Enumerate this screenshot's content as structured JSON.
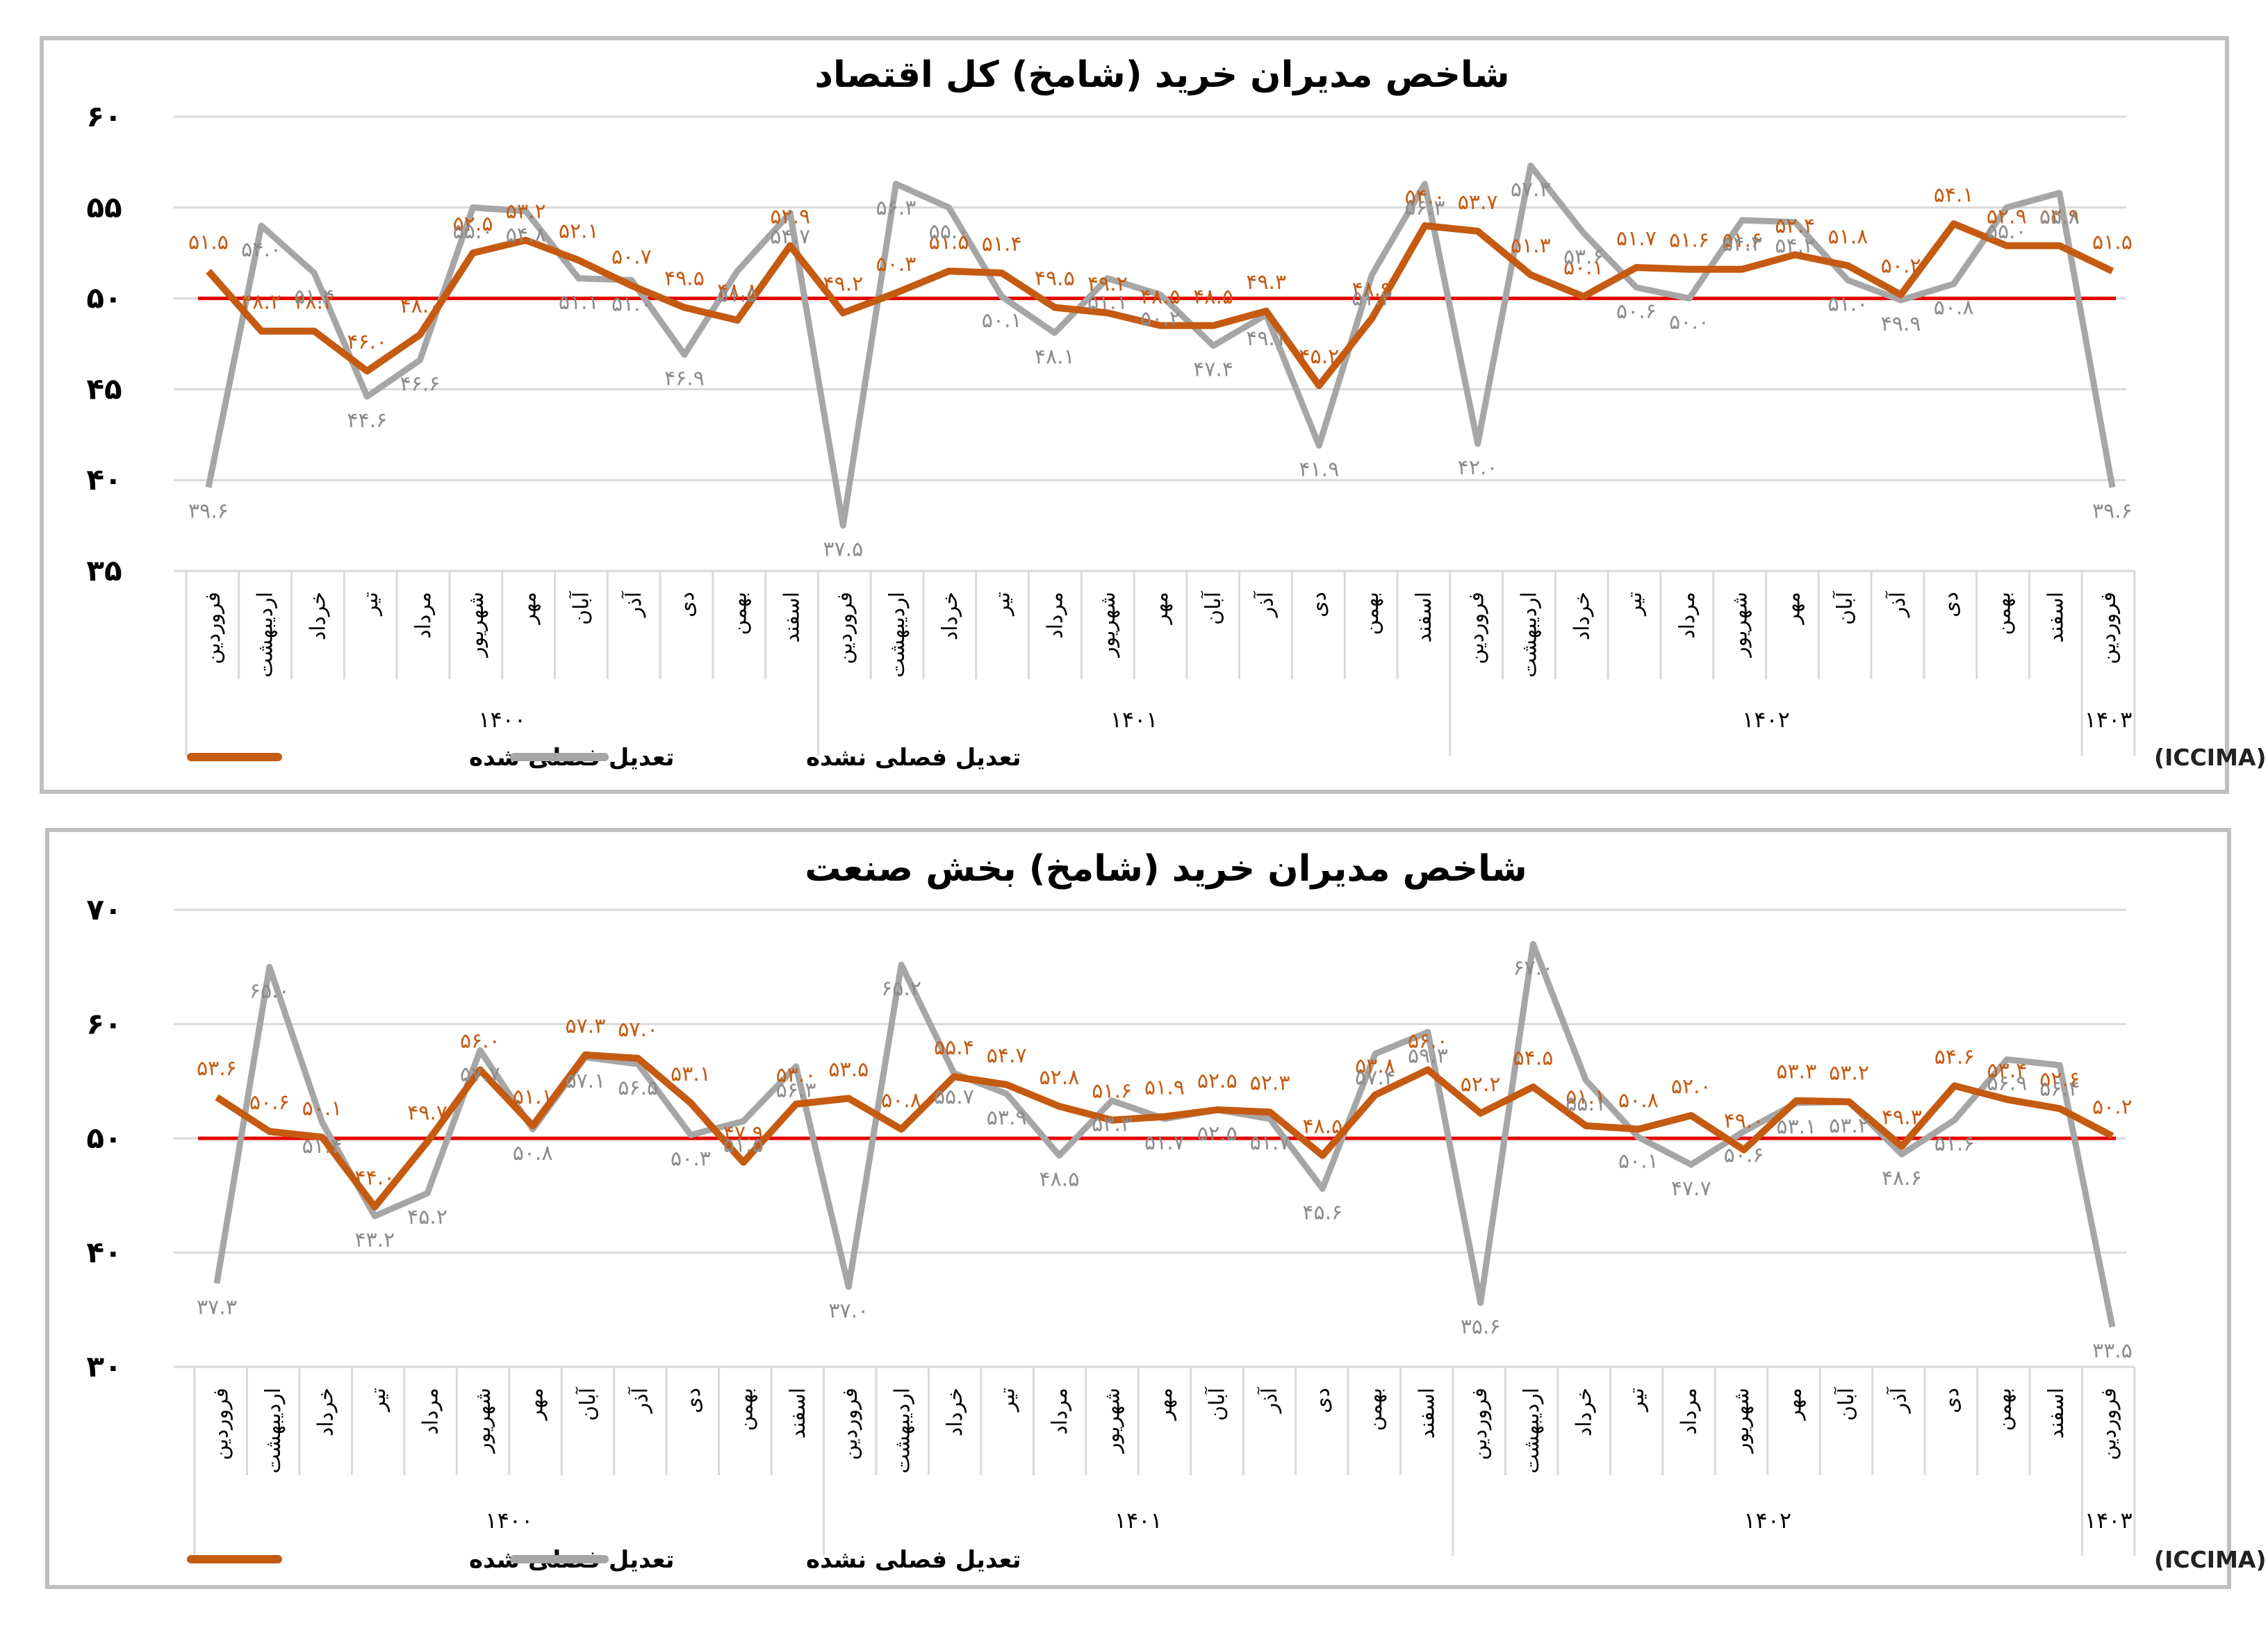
{
  "months": [
    "فروردین",
    "اردیبهشت",
    "خرداد",
    "تیر",
    "مرداد",
    "شهریور",
    "مهر",
    "آبان",
    "آذر",
    "دی",
    "بهمن",
    "اسفند",
    "فروردین",
    "اردیبهشت",
    "خرداد",
    "تیر",
    "مرداد",
    "شهریور",
    "مهر",
    "آبان",
    "آذر",
    "دی",
    "بهمن",
    "اسفند",
    "فروردین",
    "اردیبهشت",
    "خرداد",
    "تیر",
    "مرداد",
    "شهریور",
    "مهر",
    "آبان",
    "آذر",
    "دی",
    "بهمن",
    "اسفند",
    "فروردین"
  ],
  "years": [
    "۱۴۰۰",
    "۱۴۰۱",
    "۱۴۰۲",
    "۱۴۰۳"
  ],
  "legend": {
    "seasonal": "تعدیل فصلی شده",
    "unadjusted": "تعدیل فصلی نشده"
  },
  "source": "منبع: اتاق بازرگانی، صنایع، معادن و کشاورزی ایران (ICCIMA)",
  "colors": {
    "seasonal": "#c55a11",
    "unadjusted": "#a6a6a6",
    "threshold": "#e60000",
    "frame": "#bfbfbf",
    "grid": "#d9d9d9"
  },
  "chart_data": [
    {
      "type": "line",
      "title": "شاخص مدیران خرید (شامخ) کل اقتصاد",
      "ylim": [
        35,
        60
      ],
      "yticks": [
        "۳۵",
        "۴۰",
        "۴۵",
        "۵۰",
        "۵۵",
        "۶۰"
      ],
      "threshold": 50,
      "categories": [
        "فروردین",
        "اردیبهشت",
        "خرداد",
        "تیر",
        "مرداد",
        "شهریور",
        "مهر",
        "آبان",
        "آذر",
        "دی",
        "بهمن",
        "اسفند",
        "فروردین",
        "اردیبهشت",
        "خرداد",
        "تیر",
        "مرداد",
        "شهریور",
        "مهر",
        "آبان",
        "آذر",
        "دی",
        "بهمن",
        "اسفند",
        "فروردین",
        "اردیبهشت",
        "خرداد",
        "تیر",
        "مرداد",
        "شهریور",
        "مهر",
        "آبان",
        "آذر",
        "دی",
        "بهمن",
        "اسفند",
        "فروردین"
      ],
      "series": [
        {
          "name": "تعدیل فصلی شده",
          "values": [
            51.5,
            48.2,
            48.2,
            46.0,
            48.0,
            52.5,
            53.2,
            52.1,
            50.7,
            49.5,
            48.8,
            52.9,
            49.2,
            50.3,
            51.5,
            51.4,
            49.5,
            49.2,
            48.5,
            48.5,
            49.3,
            45.2,
            48.9,
            54.0,
            53.7,
            51.3,
            50.1,
            51.7,
            51.6,
            51.6,
            52.4,
            51.8,
            50.2,
            54.1,
            52.9,
            52.9,
            51.5
          ],
          "labels": [
            "۵۱.۵",
            "۴۸.۲",
            "۴۸.۲",
            "۴۶.۰",
            "۴۸.۰",
            "۵۲.۵",
            "۵۳.۲",
            "۵۲.۱",
            "۵۰.۷",
            "۴۹.۵",
            "۴۸.۸",
            "۵۲.۹",
            "۴۹.۲",
            "۵۰.۳",
            "۵۱.۵",
            "۵۱.۴",
            "۴۹.۵",
            "۴۹.۲",
            "۴۸.۵",
            "۴۸.۵",
            "۴۹.۳",
            "۴۵.۲",
            "۴۸.۹",
            "۵۴.۰",
            "۵۳.۷",
            "۵۱.۳",
            "۵۰.۱",
            "۵۱.۷",
            "۵۱.۶",
            "۵۱.۶",
            "۵۲.۴",
            "۵۱.۸",
            "۵۰.۲",
            "۵۴.۱",
            "۵۲.۹",
            "۵۲.۹",
            "۵۱.۵"
          ]
        },
        {
          "name": "تعدیل فصلی نشده",
          "values": [
            39.6,
            54.0,
            51.4,
            44.6,
            46.6,
            55.0,
            54.8,
            51.1,
            51.0,
            46.9,
            51.5,
            54.7,
            37.5,
            56.3,
            55.0,
            50.1,
            48.1,
            51.1,
            50.2,
            47.4,
            49.1,
            41.9,
            51.3,
            56.3,
            42.0,
            57.3,
            53.6,
            50.6,
            50.0,
            54.3,
            54.2,
            51.0,
            49.9,
            50.8,
            55.0,
            55.8,
            39.6
          ],
          "labels": [
            "۳۹.۶",
            "۵۴.۰",
            "۵۱.۴",
            "۴۴.۶",
            "۴۶.۶",
            "۵۵.۰",
            "۵۴.۸",
            "۵۱.۱",
            "۵۱.۰",
            "۴۶.۹",
            "۵۱.۵",
            "۵۴.۷",
            "۳۷.۵",
            "۵۶.۳",
            "۵۵.۰",
            "۵۰.۱",
            "۴۸.۱",
            "۵۱.۱",
            "۵۰.۲",
            "۴۷.۴",
            "۴۹.۱",
            "۴۱.۹",
            "۵۱.۳",
            "۵۶.۳",
            "۴۲.۰",
            "۵۷.۳",
            "۵۳.۶",
            "۵۰.۶",
            "۵۰.۰",
            "۵۴.۳",
            "۵۴.۲",
            "۵۱.۰",
            "۴۹.۹",
            "۵۰.۸",
            "۵۵.۰",
            "۵۵.۸",
            "۳۹.۶"
          ]
        }
      ]
    },
    {
      "type": "line",
      "title": "شاخص مدیران خرید (شامخ) بخش صنعت",
      "ylim": [
        30,
        70
      ],
      "yticks": [
        "۳۰",
        "۴۰",
        "۵۰",
        "۶۰",
        "۷۰"
      ],
      "threshold": 50,
      "categories": [
        "فروردین",
        "اردیبهشت",
        "خرداد",
        "تیر",
        "مرداد",
        "شهریور",
        "مهر",
        "آبان",
        "آذر",
        "دی",
        "بهمن",
        "اسفند",
        "فروردین",
        "اردیبهشت",
        "خرداد",
        "تیر",
        "مرداد",
        "شهریور",
        "مهر",
        "آبان",
        "آذر",
        "دی",
        "بهمن",
        "اسفند",
        "فروردین",
        "اردیبهشت",
        "خرداد",
        "تیر",
        "مرداد",
        "شهریور",
        "مهر",
        "آبان",
        "آذر",
        "دی",
        "بهمن",
        "اسفند",
        "فروردین"
      ],
      "series": [
        {
          "name": "تعدیل فصلی شده",
          "values": [
            53.6,
            50.6,
            50.1,
            44.0,
            49.7,
            56.0,
            51.1,
            57.3,
            57.0,
            53.1,
            47.9,
            53.0,
            53.5,
            50.8,
            55.4,
            54.7,
            52.8,
            51.6,
            51.9,
            52.5,
            52.3,
            48.5,
            53.8,
            56.0,
            52.2,
            54.5,
            51.1,
            50.8,
            52.0,
            49.0,
            53.3,
            53.2,
            49.3,
            54.6,
            53.4,
            52.6,
            50.2
          ],
          "labels": [
            "۵۳.۶",
            "۵۰.۶",
            "۵۰.۱",
            "۴۴.۰",
            "۴۹.۷",
            "۵۶.۰",
            "۵۱.۱",
            "۵۷.۳",
            "۵۷.۰",
            "۵۳.۱",
            "۴۷.۹",
            "۵۳.۰",
            "۵۳.۵",
            "۵۰.۸",
            "۵۵.۴",
            "۵۴.۷",
            "۵۲.۸",
            "۵۱.۶",
            "۵۱.۹",
            "۵۲.۵",
            "۵۲.۳",
            "۴۸.۵",
            "۵۳.۸",
            "۵۶.۰",
            "۵۲.۲",
            "۵۴.۵",
            "۵۱.۱",
            "۵۰.۸",
            "۵۲.۰",
            "۴۹.۰",
            "۵۳.۳",
            "۵۳.۲",
            "۴۹.۳",
            "۵۴.۶",
            "۵۳.۴",
            "۵۲.۶",
            "۵۰.۲"
          ]
        },
        {
          "name": "تعدیل فصلی نشده",
          "values": [
            37.3,
            65.0,
            51.4,
            43.2,
            45.2,
            57.7,
            50.8,
            57.1,
            56.5,
            50.3,
            51.5,
            56.3,
            37.0,
            65.2,
            55.7,
            53.9,
            48.5,
            53.3,
            51.7,
            52.5,
            51.7,
            45.6,
            57.4,
            59.3,
            35.6,
            67.0,
            55.1,
            50.1,
            47.7,
            50.6,
            53.1,
            53.2,
            48.6,
            51.6,
            56.9,
            56.4,
            33.5
          ],
          "labels": [
            "۳۷.۳",
            "۶۵.۰",
            "۵۱.۴",
            "۴۳.۲",
            "۴۵.۲",
            "۵۷.۷",
            "۵۰.۸",
            "۵۷.۱",
            "۵۶.۵",
            "۵۰.۳",
            "۵۱.۵",
            "۵۶.۳",
            "۳۷.۰",
            "۶۵.۲",
            "۵۵.۷",
            "۵۳.۹",
            "۴۸.۵",
            "۵۳.۳",
            "۵۱.۷",
            "۵۲.۵",
            "۵۱.۷",
            "۴۵.۶",
            "۵۷.۴",
            "۵۹.۳",
            "۳۵.۶",
            "۶۷.۰",
            "۵۵.۱",
            "۵۰.۱",
            "۴۷.۷",
            "۵۰.۶",
            "۵۳.۱",
            "۵۳.۲",
            "۴۸.۶",
            "۵۱.۶",
            "۵۶.۹",
            "۵۶.۴",
            "۳۳.۵"
          ]
        }
      ]
    }
  ]
}
